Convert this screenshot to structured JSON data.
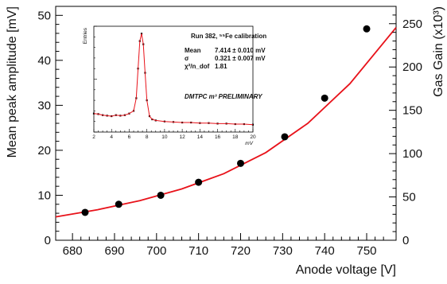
{
  "chart_data": [
    {
      "type": "scatter",
      "xlabel": "Anode voltage [V]",
      "ylabel": "Mean peak amplitude [mV]",
      "y2label": "Gas Gain (x10³)",
      "xlim": [
        676,
        757
      ],
      "ylim": [
        0,
        52
      ],
      "y2lim": [
        0,
        270
      ],
      "x_ticks": [
        680,
        690,
        700,
        710,
        720,
        730,
        740,
        750
      ],
      "y_ticks": [
        0,
        10,
        20,
        30,
        40,
        50
      ],
      "y2_ticks": [
        0,
        50,
        100,
        150,
        200,
        250
      ],
      "series": [
        {
          "points": [
            {
              "x": 683,
              "y": 6.2
            },
            {
              "x": 691,
              "y": 8.0
            },
            {
              "x": 701,
              "y": 10.0
            },
            {
              "x": 710,
              "y": 12.9
            },
            {
              "x": 720,
              "y": 17.1
            },
            {
              "x": 730.5,
              "y": 23.0
            },
            {
              "x": 740,
              "y": 31.6
            },
            {
              "x": 750,
              "y": 47.0
            }
          ]
        }
      ],
      "fit": {
        "color": "#e8121a",
        "x_range": [
          676,
          757
        ],
        "points": [
          {
            "x": 676,
            "y": 5.2
          },
          {
            "x": 686,
            "y": 6.8
          },
          {
            "x": 696,
            "y": 8.8
          },
          {
            "x": 706,
            "y": 11.4
          },
          {
            "x": 716,
            "y": 14.8
          },
          {
            "x": 726,
            "y": 19.5
          },
          {
            "x": 736,
            "y": 26.0
          },
          {
            "x": 746,
            "y": 34.8
          },
          {
            "x": 757,
            "y": 47.3
          }
        ]
      },
      "grid": false
    },
    {
      "type": "line",
      "title": "Run 382, ⁵⁵Fe calibration",
      "ylabel": "Entries",
      "xlabel": "mV",
      "xlim": [
        2,
        20
      ],
      "ylim": [
        0,
        10
      ],
      "x_ticks": [
        2,
        4,
        6,
        8,
        10,
        12,
        14,
        16,
        18,
        20
      ],
      "stats": [
        {
          "label": "Mean",
          "value": "7.414 ± 0.010 mV"
        },
        {
          "label": "σ",
          "value": "0.321 ± 0.007 mV"
        },
        {
          "label": "χ²/n_dof",
          "value": "1.81"
        }
      ],
      "annotation": "DMTPC m³ PRELIMINARY",
      "histogram": [
        {
          "x": 2.0,
          "y": 1.75
        },
        {
          "x": 2.5,
          "y": 1.7
        },
        {
          "x": 3.0,
          "y": 1.6
        },
        {
          "x": 3.5,
          "y": 1.55
        },
        {
          "x": 4.0,
          "y": 1.5
        },
        {
          "x": 4.5,
          "y": 1.6
        },
        {
          "x": 5.0,
          "y": 1.55
        },
        {
          "x": 5.5,
          "y": 1.6
        },
        {
          "x": 6.0,
          "y": 1.75
        },
        {
          "x": 6.5,
          "y": 2.0
        },
        {
          "x": 6.8,
          "y": 3.2
        },
        {
          "x": 7.0,
          "y": 6.0
        },
        {
          "x": 7.2,
          "y": 8.6
        },
        {
          "x": 7.4,
          "y": 9.3
        },
        {
          "x": 7.6,
          "y": 8.3
        },
        {
          "x": 7.8,
          "y": 5.6
        },
        {
          "x": 8.0,
          "y": 3.0
        },
        {
          "x": 8.3,
          "y": 1.5
        },
        {
          "x": 8.6,
          "y": 1.2
        },
        {
          "x": 9.0,
          "y": 1.1
        },
        {
          "x": 10.0,
          "y": 1.0
        },
        {
          "x": 11.0,
          "y": 0.95
        },
        {
          "x": 12.0,
          "y": 0.9
        },
        {
          "x": 13.0,
          "y": 0.9
        },
        {
          "x": 14.0,
          "y": 0.85
        },
        {
          "x": 15.0,
          "y": 0.85
        },
        {
          "x": 16.0,
          "y": 0.8
        },
        {
          "x": 17.0,
          "y": 0.8
        },
        {
          "x": 18.0,
          "y": 0.75
        },
        {
          "x": 19.0,
          "y": 0.75
        },
        {
          "x": 20.0,
          "y": 0.7
        }
      ],
      "fit_color": "#e8121a"
    }
  ]
}
